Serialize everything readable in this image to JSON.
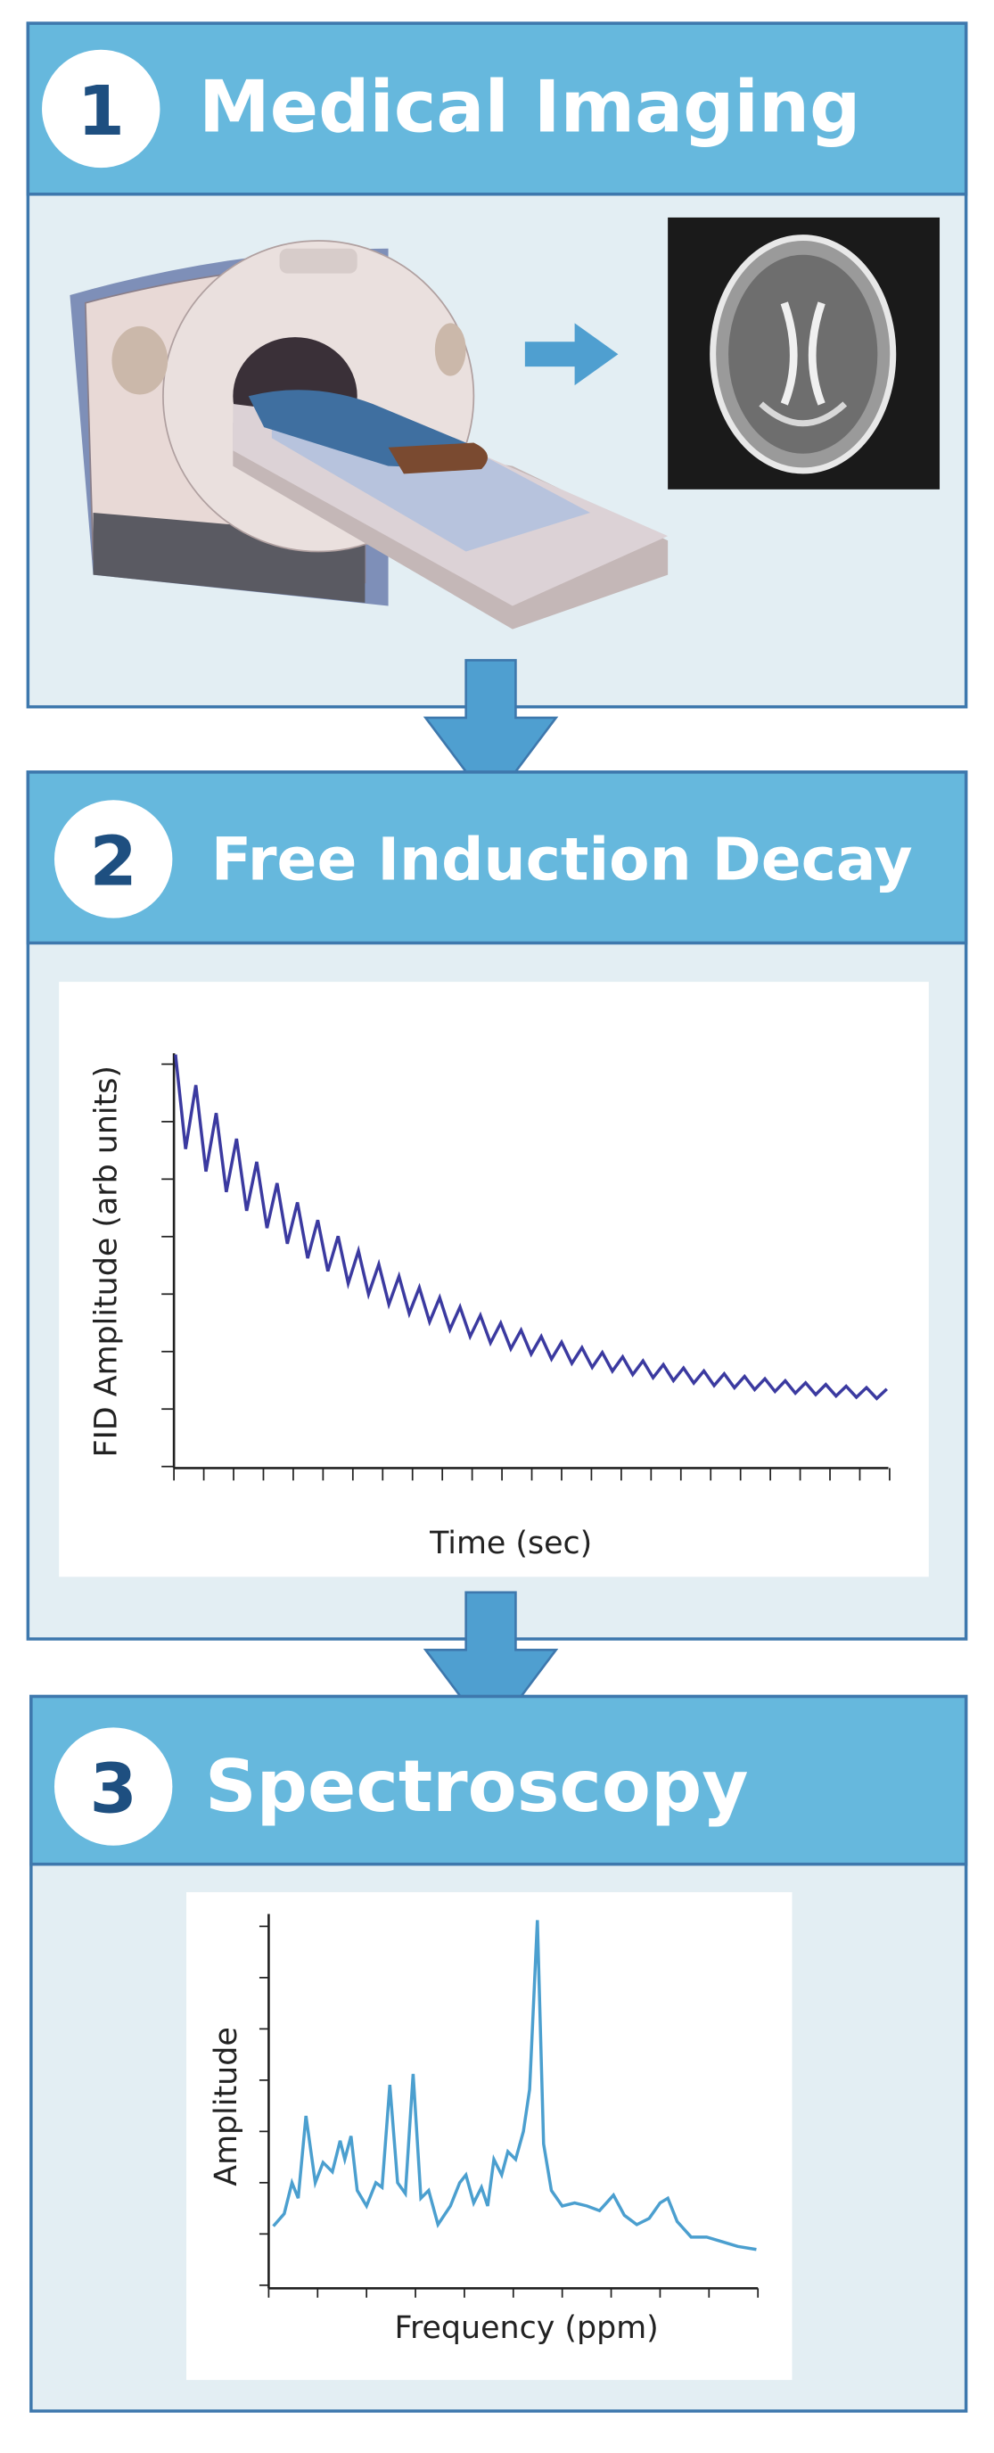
{
  "panels": [
    {
      "number": "1",
      "title": "Medical Imaging"
    },
    {
      "number": "2",
      "title": "Free Induction Decay",
      "y_label": "FID Amplitude (arb units)",
      "x_label": "Time (sec)"
    },
    {
      "number": "3",
      "title": "Spectroscopy",
      "y_label": "Amplitude",
      "x_label": "Frequency (ppm)"
    }
  ]
}
